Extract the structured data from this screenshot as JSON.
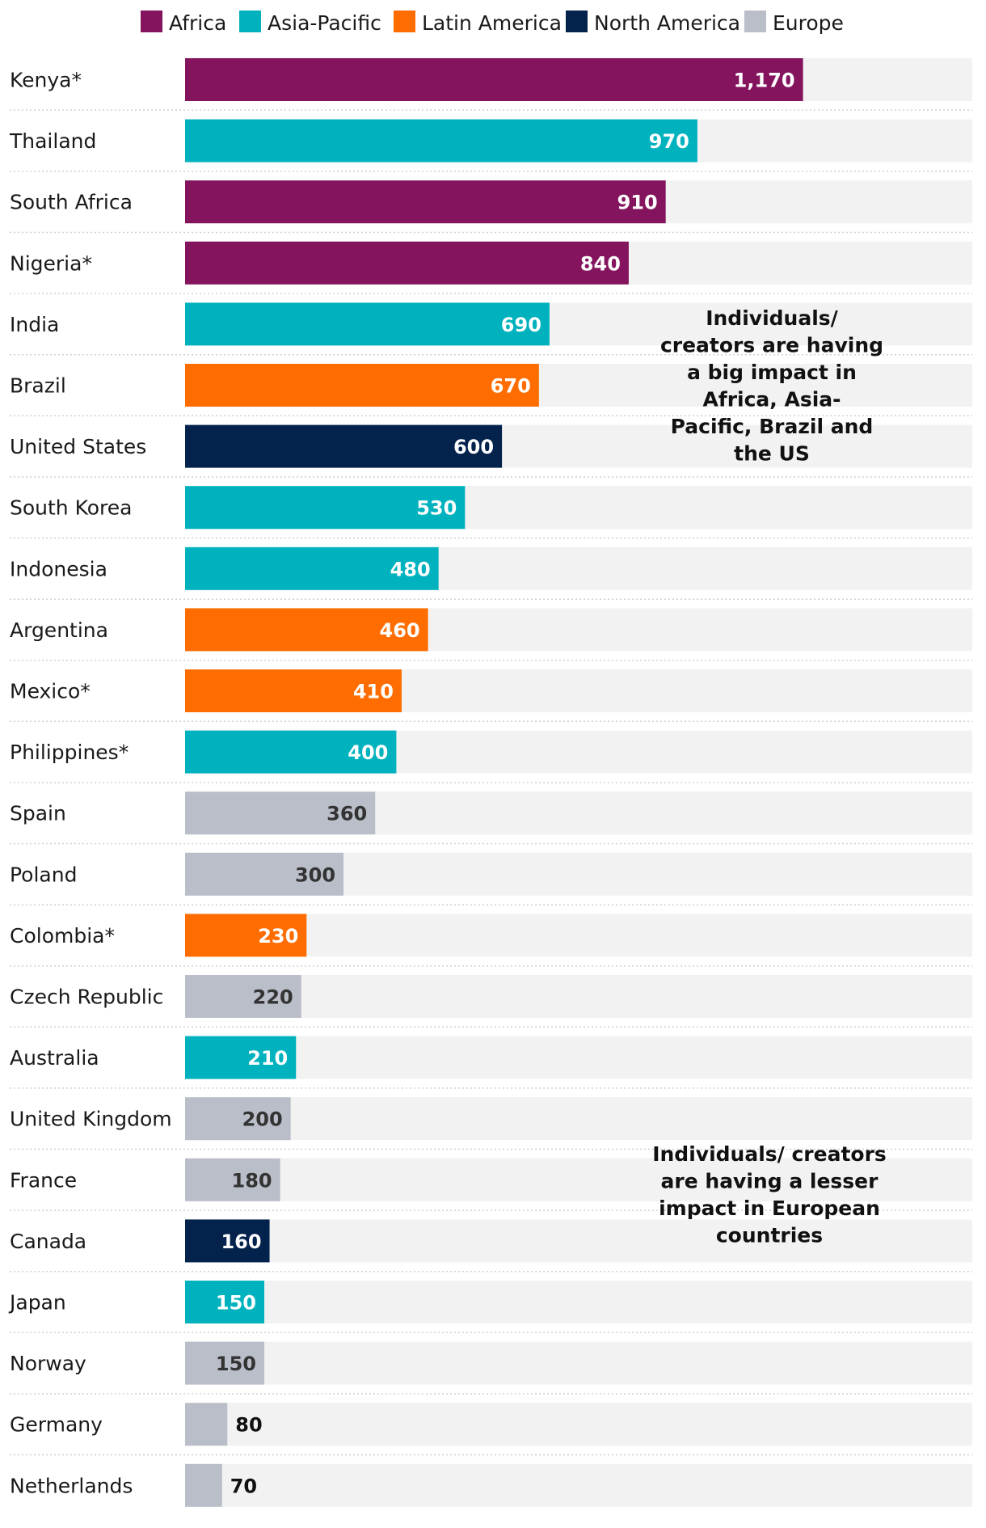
{
  "chart_data": {
    "type": "bar",
    "orientation": "horizontal",
    "categories": [
      "Kenya*",
      "Thailand",
      "South Africa",
      "Nigeria*",
      "India",
      "Brazil",
      "United States",
      "South Korea",
      "Indonesia",
      "Argentina",
      "Mexico*",
      "Philippines*",
      "Spain",
      "Poland",
      "Colombia*",
      "Czech Republic",
      "Australia",
      "United Kingdom",
      "France",
      "Canada",
      "Japan",
      "Norway",
      "Germany",
      "Netherlands"
    ],
    "values": [
      1170,
      970,
      910,
      840,
      690,
      670,
      600,
      530,
      480,
      460,
      410,
      400,
      360,
      300,
      230,
      220,
      210,
      200,
      180,
      160,
      150,
      150,
      80,
      70
    ],
    "value_labels": [
      "1,170",
      "970",
      "910",
      "840",
      "690",
      "670",
      "600",
      "530",
      "480",
      "460",
      "410",
      "400",
      "360",
      "300",
      "230",
      "220",
      "210",
      "200",
      "180",
      "160",
      "150",
      "150",
      "80",
      "70"
    ],
    "regions": [
      "Africa",
      "Asia-Pacific",
      "Africa",
      "Africa",
      "Asia-Pacific",
      "Latin America",
      "North America",
      "Asia-Pacific",
      "Asia-Pacific",
      "Latin America",
      "Latin America",
      "Asia-Pacific",
      "Europe",
      "Europe",
      "Latin America",
      "Europe",
      "Asia-Pacific",
      "Europe",
      "Europe",
      "North America",
      "Asia-Pacific",
      "Europe",
      "Europe",
      "Europe"
    ],
    "xlim": [
      0,
      1500
    ],
    "legend": {
      "placement": "top",
      "entries": [
        {
          "name": "Africa",
          "color": "#84145e"
        },
        {
          "name": "Asia-Pacific",
          "color": "#00b2be"
        },
        {
          "name": "Latin America",
          "color": "#ff6d00"
        },
        {
          "name": "North America",
          "color": "#03224c"
        },
        {
          "name": "Europe",
          "color": "#b9bec9"
        }
      ]
    },
    "annotations": [
      {
        "id": "big-impact",
        "text": "Individuals/ creators are having a big impact in Africa, Asia-Pacific, Brazil and the US",
        "lines": [
          "Individuals/",
          "creators are having",
          "a big impact in",
          "Africa, Asia-",
          "Pacific, Brazil and",
          "the US"
        ]
      },
      {
        "id": "lesser-impact",
        "text": "Individuals/ creators are having a lesser impact in European countries",
        "lines": [
          "Individuals/ creators",
          "are having a lesser",
          "impact in European",
          "countries"
        ]
      }
    ],
    "colors": {
      "track": "#f2f2f2",
      "divider": "#d0d0d0",
      "label_light": "#ffffff",
      "label_dark": "#333333"
    }
  }
}
